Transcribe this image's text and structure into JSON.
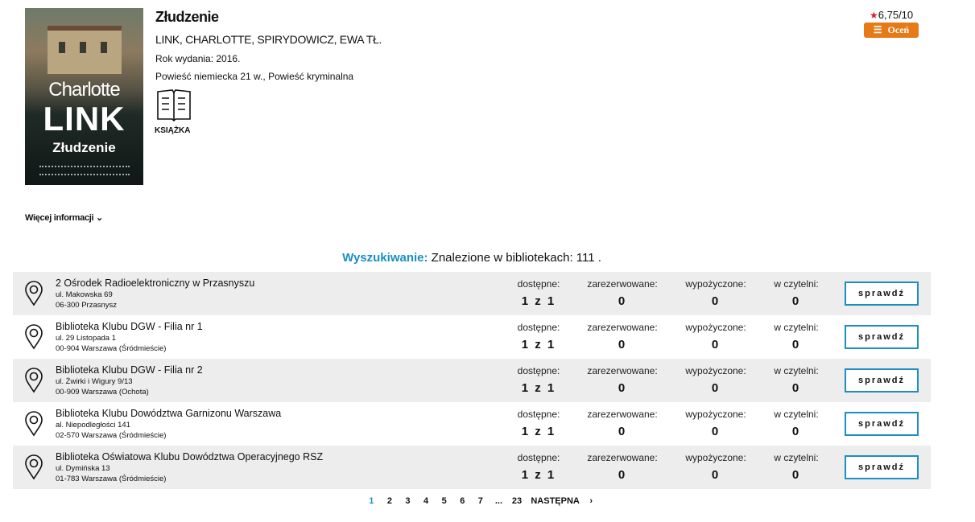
{
  "book": {
    "cover_text": {
      "author_first": "Charlotte",
      "author_last": "LINK",
      "title": "Złudzenie"
    },
    "title": "Złudzenie",
    "authors": "LINK, CHARLOTTE, SPIRYDOWICZ, EWA TŁ.",
    "year": "Rok wydania: 2016.",
    "genre": "Powieść niemiecka 21 w., Powieść kryminalna",
    "type_label": "KSIĄŻKA",
    "type_icon": "open-book-icon"
  },
  "rating": {
    "value": "6,75/10",
    "button": "Oceń",
    "accent": "#e67a17"
  },
  "more_info": "Więcej informacji",
  "search": {
    "label": "Wyszukiwanie:",
    "text": "Znalezione w bibliotekach: 111 ."
  },
  "columns": [
    "dostępne:",
    "zarezerwowane:",
    "wypożyczone:",
    "w czytelni:"
  ],
  "check_label": "sprawdź",
  "libraries": [
    {
      "name": "2 Ośrodek Radioelektroniczny w Przasnyszu",
      "street": "ul. Makowska 69",
      "city": "06-300 Przasnysz",
      "available": "1 z 1",
      "reserved": "0",
      "borrowed": "0",
      "reading_room": "0"
    },
    {
      "name": "Biblioteka Klubu DGW - Filia nr 1",
      "street": "ul. 29 Listopada 1",
      "city": "00-904 Warszawa (Śródmieście)",
      "available": "1 z 1",
      "reserved": "0",
      "borrowed": "0",
      "reading_room": "0"
    },
    {
      "name": "Biblioteka Klubu DGW - Filia nr 2",
      "street": "ul. Żwirki i Wigury 9/13",
      "city": "00-909 Warszawa (Ochota)",
      "available": "1 z 1",
      "reserved": "0",
      "borrowed": "0",
      "reading_room": "0"
    },
    {
      "name": "Biblioteka Klubu Dowództwa Garnizonu Warszawa",
      "street": "al. Niepodległości 141",
      "city": "02-570 Warszawa (Śródmieście)",
      "available": "1 z 1",
      "reserved": "0",
      "borrowed": "0",
      "reading_room": "0"
    },
    {
      "name": "Biblioteka Oświatowa Klubu Dowództwa Operacyjnego RSZ",
      "street": "ul. Dymińska 13",
      "city": "01-783 Warszawa (Śródmieście)",
      "available": "1 z 1",
      "reserved": "0",
      "borrowed": "0",
      "reading_room": "0"
    }
  ],
  "pagination": {
    "pages": [
      "1",
      "2",
      "3",
      "4",
      "5",
      "6",
      "7",
      "...",
      "23"
    ],
    "current": "1",
    "next": "NASTĘPNA"
  }
}
